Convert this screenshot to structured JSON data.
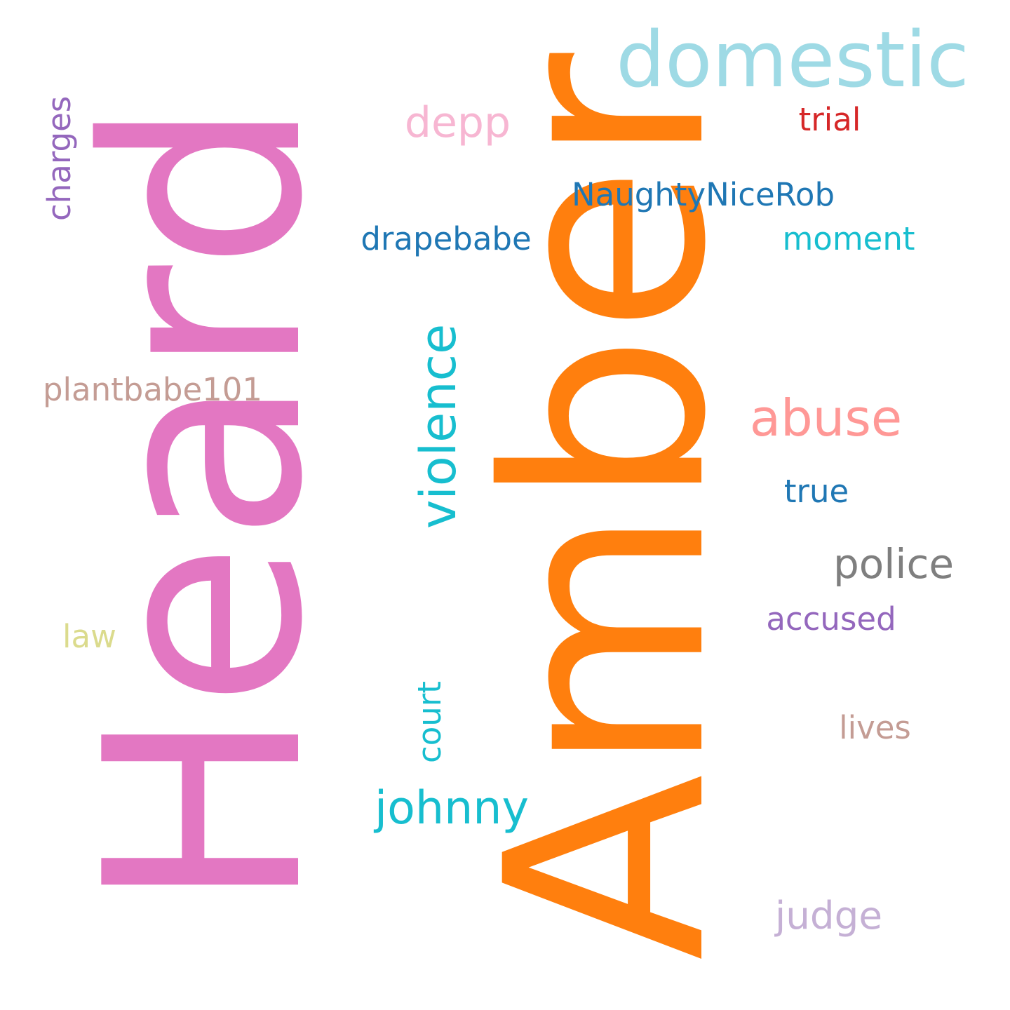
{
  "words": [
    {
      "id": "heard",
      "text": "Heard",
      "color": "#e377c2",
      "orientation": "vertical"
    },
    {
      "id": "amber",
      "text": "Amber",
      "color": "#ff7f0e",
      "orientation": "vertical"
    },
    {
      "id": "domestic",
      "text": "domestic",
      "color": "#9edae5",
      "orientation": "horizontal"
    },
    {
      "id": "violence",
      "text": "violence",
      "color": "#17becf",
      "orientation": "vertical"
    },
    {
      "id": "abuse",
      "text": "abuse",
      "color": "#ff9896",
      "orientation": "horizontal"
    },
    {
      "id": "police",
      "text": "police",
      "color": "#7f7f7f",
      "orientation": "horizontal"
    },
    {
      "id": "johnny",
      "text": "johnny",
      "color": "#17becf",
      "orientation": "horizontal"
    },
    {
      "id": "depp",
      "text": "depp",
      "color": "#f7b6d2",
      "orientation": "horizontal"
    },
    {
      "id": "naughtynicerob",
      "text": "NaughtyNiceRob",
      "color": "#1f77b4",
      "orientation": "horizontal"
    },
    {
      "id": "drapebabe",
      "text": "drapebabe",
      "color": "#1f77b4",
      "orientation": "horizontal"
    },
    {
      "id": "plantbabe101",
      "text": "plantbabe101",
      "color": "#c49c94",
      "orientation": "horizontal"
    },
    {
      "id": "moment",
      "text": "moment",
      "color": "#17becf",
      "orientation": "horizontal"
    },
    {
      "id": "trial",
      "text": "trial",
      "color": "#d62728",
      "orientation": "horizontal"
    },
    {
      "id": "charges",
      "text": "charges",
      "color": "#9467bd",
      "orientation": "vertical"
    },
    {
      "id": "true",
      "text": "true",
      "color": "#1f77b4",
      "orientation": "horizontal"
    },
    {
      "id": "accused",
      "text": "accused",
      "color": "#9467bd",
      "orientation": "horizontal"
    },
    {
      "id": "court",
      "text": "court",
      "color": "#17becf",
      "orientation": "vertical"
    },
    {
      "id": "law",
      "text": "law",
      "color": "#dbdb8d",
      "orientation": "horizontal"
    },
    {
      "id": "lives",
      "text": "lives",
      "color": "#c49c94",
      "orientation": "horizontal"
    },
    {
      "id": "judge",
      "text": "judge",
      "color": "#c5b0d5",
      "orientation": "horizontal"
    }
  ]
}
